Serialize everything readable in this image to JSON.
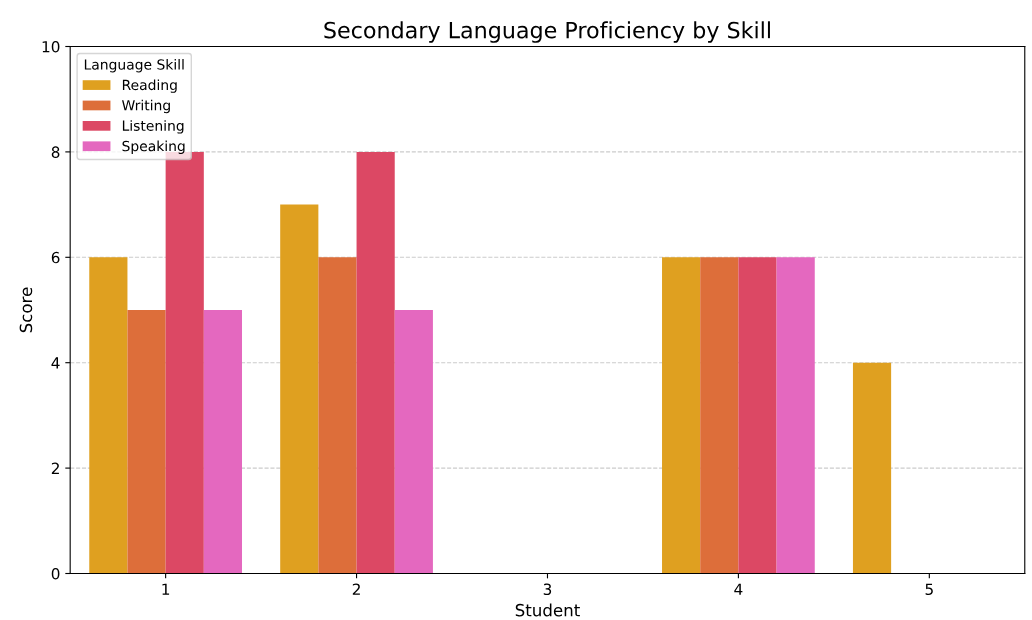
{
  "chart_data": {
    "type": "bar",
    "title": "Secondary Language Proficiency by Skill",
    "xlabel": "Student",
    "ylabel": "Score",
    "categories": [
      "1",
      "2",
      "3",
      "4",
      "5"
    ],
    "series": [
      {
        "name": "Reading",
        "color": "#dfa020",
        "values": [
          6,
          7,
          null,
          6,
          4
        ]
      },
      {
        "name": "Writing",
        "color": "#dd6e3a",
        "values": [
          5,
          6,
          null,
          6,
          null
        ]
      },
      {
        "name": "Listening",
        "color": "#dc4864",
        "values": [
          8,
          8,
          null,
          6,
          null
        ]
      },
      {
        "name": "Speaking",
        "color": "#e468bf",
        "values": [
          5,
          5,
          null,
          6,
          null
        ]
      }
    ],
    "legend_title": "Language Skill",
    "legend": "top left",
    "ylim": [
      0,
      10
    ],
    "yticks": [
      0,
      2,
      4,
      6,
      8,
      10
    ],
    "grid": "y"
  }
}
